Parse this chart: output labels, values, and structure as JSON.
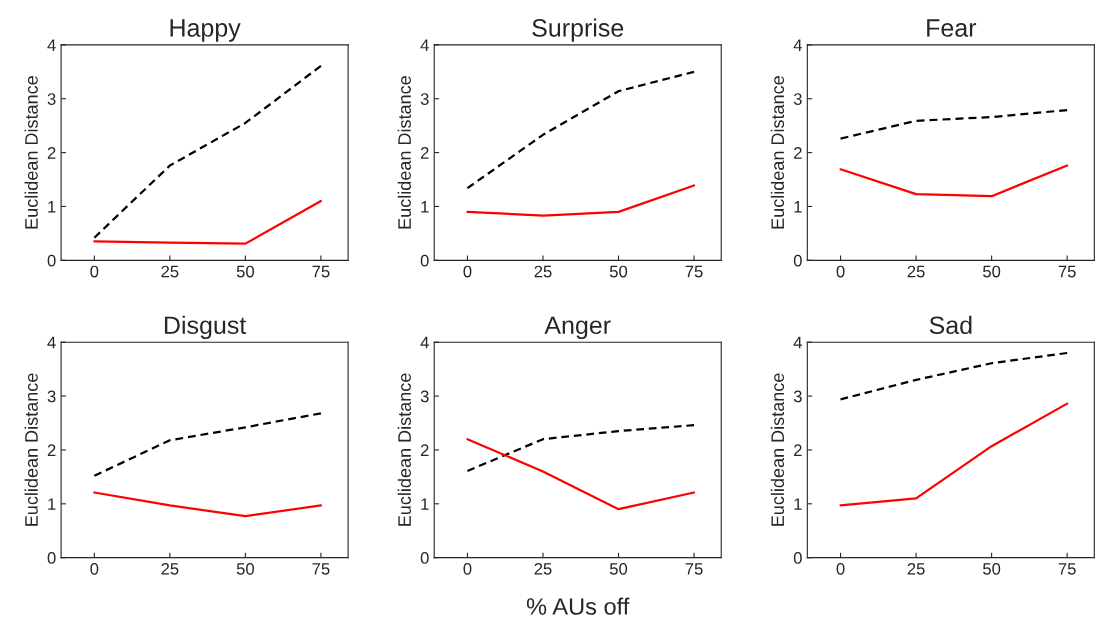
{
  "chart_data": [
    {
      "type": "line",
      "title": "Happy",
      "ylabel": "Euclidean Distance",
      "x": [
        0,
        25,
        50,
        75
      ],
      "xlim": [
        -11,
        84
      ],
      "ylim": [
        0,
        4
      ],
      "xticks": [
        0,
        25,
        50,
        75
      ],
      "yticks": [
        0,
        1,
        2,
        3,
        4
      ],
      "series": [
        {
          "color": "#000000",
          "line_style": "dashed",
          "values": [
            0.42,
            1.76,
            2.55,
            3.61
          ]
        },
        {
          "color": "#ff0000",
          "line_style": "solid",
          "values": [
            0.35,
            0.33,
            0.31,
            1.1
          ]
        }
      ]
    },
    {
      "type": "line",
      "title": "Surprise",
      "ylabel": "Euclidean Distance",
      "x": [
        0,
        25,
        50,
        75
      ],
      "xlim": [
        -11,
        84
      ],
      "ylim": [
        0,
        4
      ],
      "xticks": [
        0,
        25,
        50,
        75
      ],
      "yticks": [
        0,
        1,
        2,
        3,
        4
      ],
      "series": [
        {
          "color": "#000000",
          "line_style": "dashed",
          "values": [
            1.34,
            2.33,
            3.14,
            3.5
          ]
        },
        {
          "color": "#ff0000",
          "line_style": "solid",
          "values": [
            0.9,
            0.83,
            0.9,
            1.39
          ]
        }
      ]
    },
    {
      "type": "line",
      "title": "Fear",
      "ylabel": "Euclidean Distance",
      "x": [
        0,
        25,
        50,
        75
      ],
      "xlim": [
        -11,
        84
      ],
      "ylim": [
        0,
        4
      ],
      "xticks": [
        0,
        25,
        50,
        75
      ],
      "yticks": [
        0,
        1,
        2,
        3,
        4
      ],
      "series": [
        {
          "color": "#000000",
          "line_style": "dashed",
          "values": [
            2.26,
            2.59,
            2.66,
            2.79
          ]
        },
        {
          "color": "#ff0000",
          "line_style": "solid",
          "values": [
            1.69,
            1.23,
            1.19,
            1.76
          ]
        }
      ]
    },
    {
      "type": "line",
      "title": "Disgust",
      "ylabel": "Euclidean Distance",
      "x": [
        0,
        25,
        50,
        75
      ],
      "xlim": [
        -11,
        84
      ],
      "ylim": [
        0,
        4
      ],
      "xticks": [
        0,
        25,
        50,
        75
      ],
      "yticks": [
        0,
        1,
        2,
        3,
        4
      ],
      "series": [
        {
          "color": "#000000",
          "line_style": "dashed",
          "values": [
            1.52,
            2.18,
            2.42,
            2.68
          ]
        },
        {
          "color": "#ff0000",
          "line_style": "solid",
          "values": [
            1.21,
            0.97,
            0.77,
            0.97
          ]
        }
      ]
    },
    {
      "type": "line",
      "title": "Anger",
      "ylabel": "Euclidean Distance",
      "xlabel": "% AUs off",
      "x": [
        0,
        25,
        50,
        75
      ],
      "xlim": [
        -11,
        84
      ],
      "ylim": [
        0,
        4
      ],
      "xticks": [
        0,
        25,
        50,
        75
      ],
      "yticks": [
        0,
        1,
        2,
        3,
        4
      ],
      "series": [
        {
          "color": "#000000",
          "line_style": "dashed",
          "values": [
            1.61,
            2.2,
            2.35,
            2.46
          ]
        },
        {
          "color": "#ff0000",
          "line_style": "solid",
          "values": [
            2.2,
            1.6,
            0.9,
            1.21
          ]
        }
      ]
    },
    {
      "type": "line",
      "title": "Sad",
      "ylabel": "Euclidean Distance",
      "x": [
        0,
        25,
        50,
        75
      ],
      "xlim": [
        -11,
        84
      ],
      "ylim": [
        0,
        4
      ],
      "xticks": [
        0,
        25,
        50,
        75
      ],
      "yticks": [
        0,
        1,
        2,
        3,
        4
      ],
      "series": [
        {
          "color": "#000000",
          "line_style": "dashed",
          "values": [
            2.94,
            3.3,
            3.61,
            3.8
          ]
        },
        {
          "color": "#ff0000",
          "line_style": "solid",
          "values": [
            0.97,
            1.1,
            2.07,
            2.86
          ]
        }
      ]
    }
  ]
}
